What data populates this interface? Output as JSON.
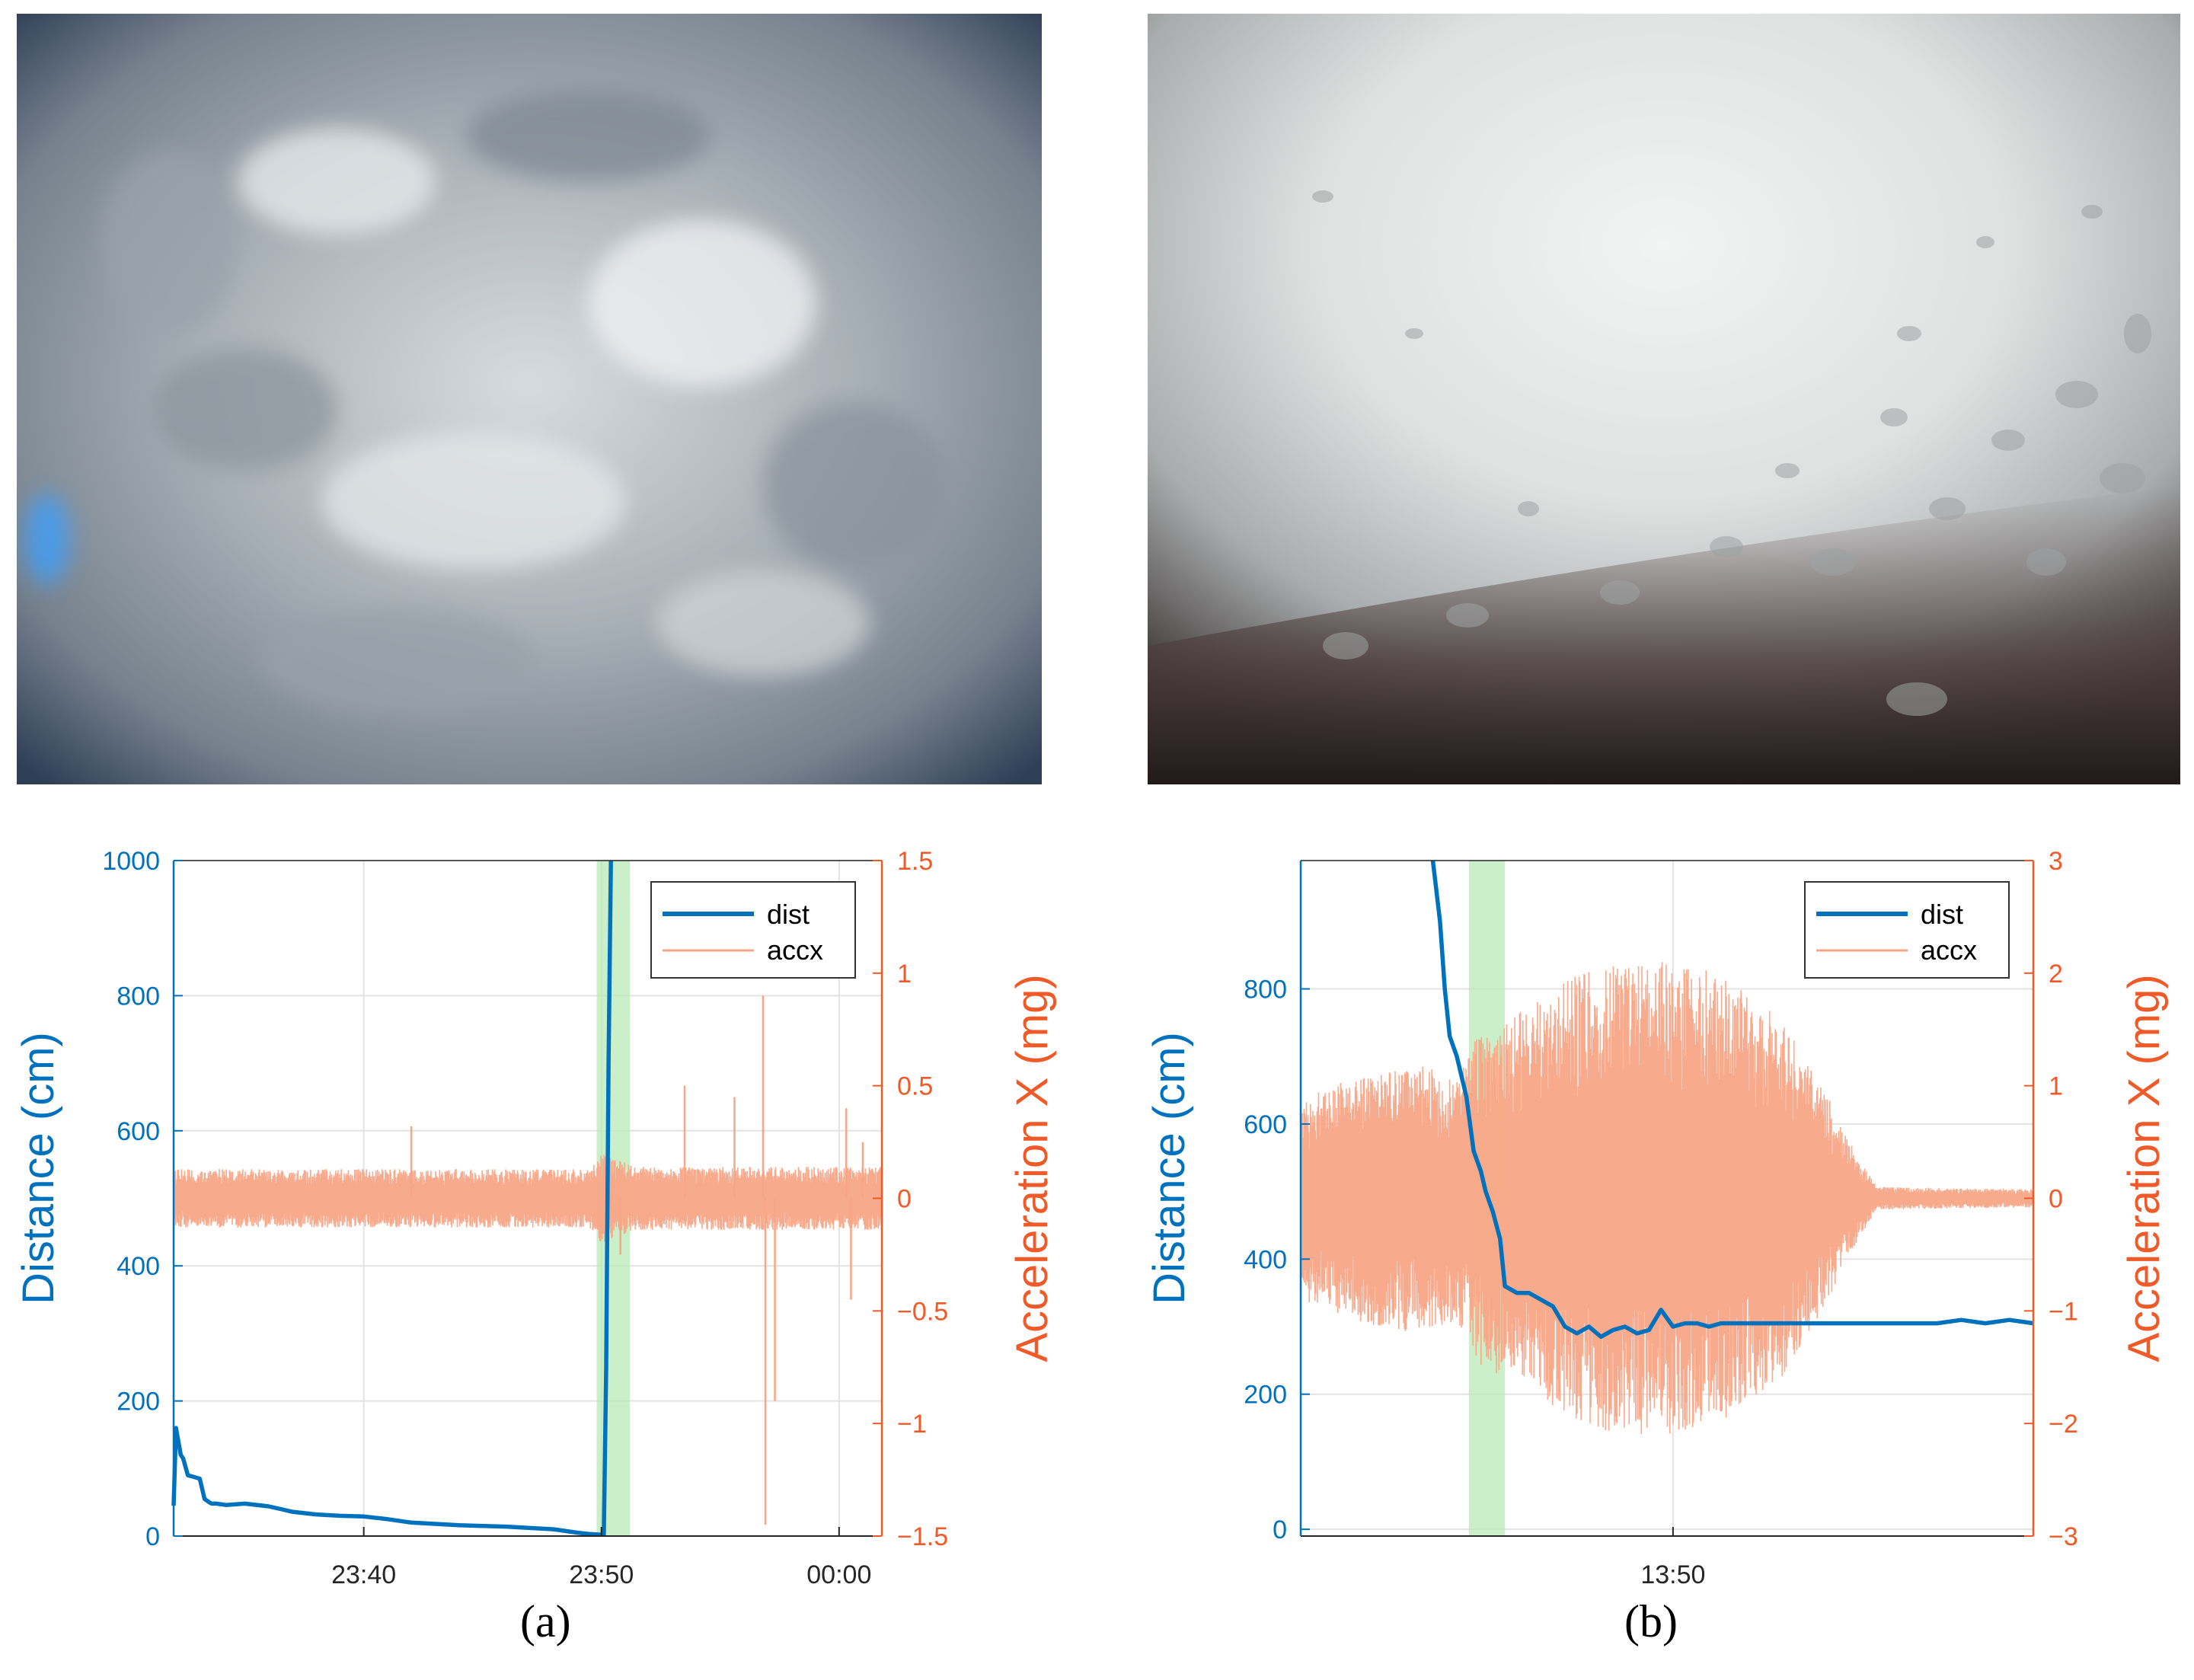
{
  "figure": {
    "panel_a": {
      "caption": "(a)"
    },
    "panel_b": {
      "caption": "(b)"
    }
  },
  "colors": {
    "dist": "#0072bd",
    "accx": "#f8a587",
    "highlight": "#b9eab7",
    "left_axis": "#0072bd",
    "right_axis": "#ef5a28",
    "grid": "#e3e3e3"
  },
  "chart_data": [
    {
      "type": "line",
      "panel": "(a)",
      "title": "",
      "ylabel_left": "Distance (cm)",
      "ylabel_right": "Acceleration X (mg)",
      "xlabel": "",
      "x_ticks": [
        "23:40",
        "23:50",
        "00:00"
      ],
      "x_tick_minutes": [
        0,
        10,
        20
      ],
      "x_range_minutes": [
        -8.0,
        21.8
      ],
      "ylim_left": [
        0,
        1000
      ],
      "yticks_left": [
        "0",
        "200",
        "400",
        "600",
        "800",
        "1000"
      ],
      "ylim_right": [
        -1.5,
        1.5
      ],
      "yticks_right": [
        "−1.5",
        "−1",
        "−0.5",
        "0",
        "0.5",
        "1",
        "1.5"
      ],
      "grid": true,
      "legend": {
        "placement": "top-right",
        "entries": [
          "dist",
          "accx"
        ]
      },
      "highlight_span_minutes": [
        9.8,
        11.2
      ],
      "series": [
        {
          "name": "dist",
          "x": [
            -8.0,
            -7.9,
            -7.7,
            -7.6,
            -7.4,
            -7.2,
            -6.9,
            -6.7,
            -6.5,
            -6.4,
            -6.2,
            -5.8,
            -5.0,
            -4.0,
            -3.5,
            -3.0,
            -2.0,
            -1.0,
            0.0,
            1.0,
            2.0,
            3.0,
            4.0,
            5.0,
            6.0,
            7.0,
            8.0,
            9.0,
            9.5,
            10.0,
            10.1,
            10.2,
            10.3,
            10.4
          ],
          "y": [
            45,
            160,
            120,
            115,
            90,
            88,
            85,
            55,
            50,
            48,
            48,
            46,
            48,
            44,
            40,
            36,
            32,
            30,
            29,
            25,
            20,
            18,
            16,
            15,
            14,
            12,
            10,
            5,
            3,
            2,
            2,
            250,
            700,
            1000
          ]
        },
        {
          "name": "accx",
          "x_range_minutes": [
            -8.0,
            21.8
          ],
          "center": 0.0,
          "envelope": [
            [
              -8.0,
              0.13
            ],
            [
              9.5,
              0.13
            ],
            [
              10.0,
              0.2
            ],
            [
              11.5,
              0.14
            ],
            [
              21.8,
              0.14
            ]
          ],
          "spikes": [
            [
              2.0,
              0.32
            ],
            [
              10.8,
              -0.25
            ],
            [
              13.5,
              0.5
            ],
            [
              15.6,
              0.45
            ],
            [
              16.8,
              0.9
            ],
            [
              16.9,
              -1.45
            ],
            [
              17.3,
              -0.9
            ],
            [
              20.3,
              0.4
            ],
            [
              20.5,
              -0.45
            ],
            [
              21.0,
              0.25
            ]
          ]
        }
      ]
    },
    {
      "type": "line",
      "panel": "(b)",
      "title": "",
      "ylabel_left": "Distance (cm)",
      "ylabel_right": "Acceleration X (mg)",
      "xlabel": "",
      "x_ticks": [
        "13:50"
      ],
      "x_tick_minutes": [
        0
      ],
      "x_range_minutes": [
        -15.5,
        15.0
      ],
      "ylim_left": [
        -10,
        990
      ],
      "yticks_left": [
        "0",
        "200",
        "400",
        "600",
        "800"
      ],
      "yticks_left_values": [
        0,
        200,
        400,
        600,
        800
      ],
      "ylim_right": [
        -3,
        3
      ],
      "yticks_right": [
        "−3",
        "−2",
        "−1",
        "0",
        "1",
        "2",
        "3"
      ],
      "grid": true,
      "legend": {
        "placement": "top-right",
        "entries": [
          "dist",
          "accx"
        ]
      },
      "highlight_span_minutes": [
        -8.5,
        -7.0
      ],
      "series": [
        {
          "name": "dist",
          "x": [
            -10.0,
            -9.7,
            -9.5,
            -9.3,
            -9.0,
            -8.6,
            -8.3,
            -8.0,
            -7.8,
            -7.5,
            -7.2,
            -7.0,
            -6.5,
            -6.0,
            -5.5,
            -5.0,
            -4.5,
            -4.0,
            -3.5,
            -3.0,
            -2.5,
            -2.0,
            -1.5,
            -1.0,
            -0.5,
            0.0,
            0.5,
            1.0,
            1.5,
            2.0,
            2.5,
            3.0,
            3.5,
            4.0,
            4.5,
            5.0,
            6.0,
            7.0,
            8.0,
            9.0,
            10.0,
            11.0,
            12.0,
            13.0,
            14.0,
            15.0
          ],
          "y": [
            990,
            900,
            800,
            730,
            700,
            640,
            560,
            530,
            500,
            470,
            430,
            360,
            350,
            350,
            340,
            330,
            300,
            290,
            300,
            285,
            295,
            300,
            290,
            295,
            325,
            300,
            305,
            305,
            300,
            305,
            305,
            305,
            305,
            305,
            305,
            305,
            305,
            305,
            305,
            305,
            305,
            305,
            310,
            305,
            310,
            305
          ],
          "notes_omit": false
        },
        {
          "name": "accx",
          "x_range_minutes": [
            -15.5,
            15.0
          ],
          "center": 0.0,
          "envelope": [
            [
              -15.5,
              0.9
            ],
            [
              -13.0,
              1.1
            ],
            [
              -11.0,
              1.2
            ],
            [
              -9.0,
              1.1
            ],
            [
              -8.0,
              1.5
            ],
            [
              -6.0,
              1.7
            ],
            [
              -4.0,
              2.0
            ],
            [
              -2.0,
              2.1
            ],
            [
              0.0,
              2.1
            ],
            [
              2.0,
              2.0
            ],
            [
              4.5,
              1.6
            ],
            [
              6.5,
              0.9
            ],
            [
              7.2,
              0.55
            ],
            [
              8.5,
              0.1
            ],
            [
              15.0,
              0.08
            ]
          ]
        }
      ]
    }
  ]
}
